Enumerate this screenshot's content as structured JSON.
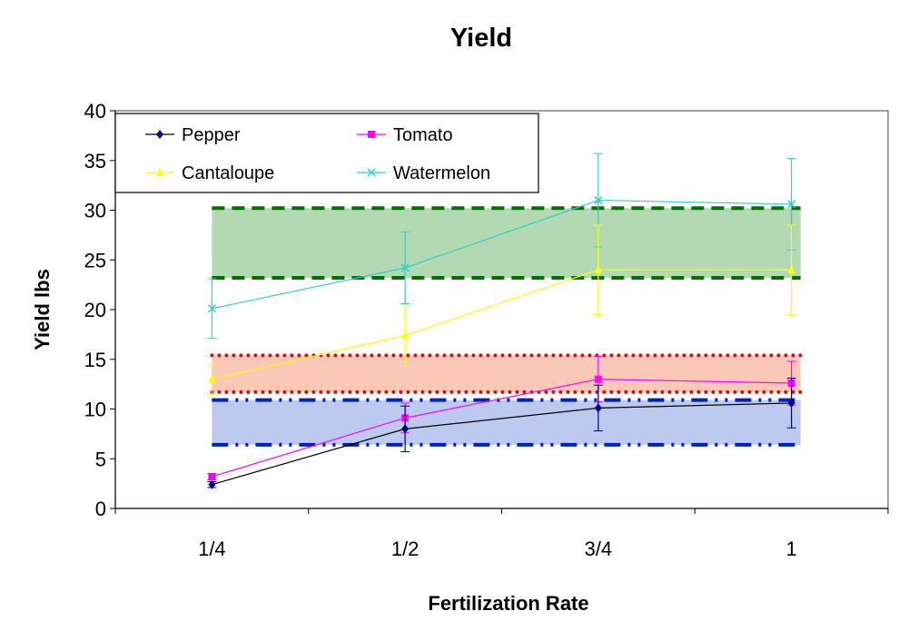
{
  "chart_data": {
    "type": "line",
    "title": "Yield",
    "xlabel": "Fertilization Rate",
    "ylabel": "Yield  lbs",
    "categories": [
      "1/4",
      "1/2",
      "3/4",
      "1"
    ],
    "ylim": [
      0,
      40
    ],
    "yticks": [
      0,
      5,
      10,
      15,
      20,
      25,
      30,
      35,
      40
    ],
    "grid": false,
    "legend_position": "top-left",
    "series": [
      {
        "name": "Pepper",
        "color": "#000080",
        "marker": "diamond",
        "values": [
          2.4,
          8.0,
          10.1,
          10.6
        ],
        "errors": [
          0.3,
          2.3,
          2.3,
          2.5
        ]
      },
      {
        "name": "Tomato",
        "color": "#ff00ff",
        "marker": "square",
        "values": [
          3.2,
          9.1,
          13.0,
          12.6
        ],
        "errors": [
          0.3,
          1.5,
          2.3,
          2.2
        ]
      },
      {
        "name": "Cantaloupe",
        "color": "#ffff00",
        "marker": "triangle",
        "values": [
          13.0,
          17.4,
          24.0,
          24.0
        ],
        "errors": [
          1.5,
          3.1,
          4.5,
          4.5
        ]
      },
      {
        "name": "Watermelon",
        "color": "#33cccc",
        "marker": "x",
        "values": [
          20.1,
          24.2,
          31.0,
          30.6
        ],
        "errors": [
          3.0,
          3.6,
          4.7,
          4.6
        ]
      }
    ],
    "bands": [
      {
        "low": 23.2,
        "high": 30.2,
        "fill": "#b3d9b3",
        "line": "#007000",
        "style": "dashed"
      },
      {
        "low": 11.7,
        "high": 15.4,
        "fill": "#fbc8b8",
        "line": "#d01010",
        "style": "dotted"
      },
      {
        "low": 6.4,
        "high": 10.9,
        "fill": "#bccaf0",
        "line": "#0020c0",
        "style": "dash-dot-dot"
      }
    ]
  }
}
